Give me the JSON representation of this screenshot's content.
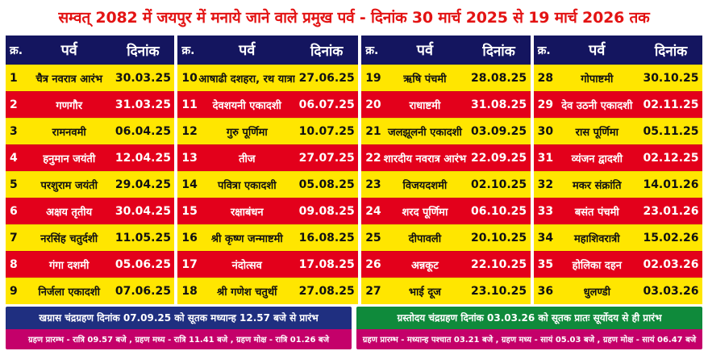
{
  "title": "सम्वत् 2082 में जयपुर में मनाये जाने वाले प्रमुख पर्व - दिनांक 30 मार्च 2025 से 19 मार्च 2026 तक",
  "headers": {
    "num": "क्र.",
    "festival": "पर्व",
    "date": "दिनांक"
  },
  "colors": {
    "header_bg": "#14155f",
    "yellow": "#ffe600",
    "red": "#e3001b",
    "title": "#e31313"
  },
  "columns": [
    [
      {
        "num": "1",
        "name": "चैत्र नवरात्र आरंभ",
        "date": "30.03.25"
      },
      {
        "num": "2",
        "name": "गणगौर",
        "date": "31.03.25"
      },
      {
        "num": "3",
        "name": "रामनवमी",
        "date": "06.04.25"
      },
      {
        "num": "4",
        "name": "हनुमान जयंती",
        "date": "12.04.25"
      },
      {
        "num": "5",
        "name": "परशुराम जयंती",
        "date": "29.04.25"
      },
      {
        "num": "6",
        "name": "अक्षय तृतीय",
        "date": "30.04.25"
      },
      {
        "num": "7",
        "name": "नरसिंह चतुर्दशी",
        "date": "11.05.25"
      },
      {
        "num": "8",
        "name": "गंगा दशमी",
        "date": "05.06.25"
      },
      {
        "num": "9",
        "name": "निर्जला एकादशी",
        "date": "07.06.25"
      }
    ],
    [
      {
        "num": "10",
        "name": "आषाढी दशहरा, रथ यात्रा",
        "date": "27.06.25"
      },
      {
        "num": "11",
        "name": "देवशयनी एकादशी",
        "date": "06.07.25"
      },
      {
        "num": "12",
        "name": "गुरु पूर्णिमा",
        "date": "10.07.25"
      },
      {
        "num": "13",
        "name": "तीज",
        "date": "27.07.25"
      },
      {
        "num": "14",
        "name": "पवित्रा एकादशी",
        "date": "05.08.25"
      },
      {
        "num": "15",
        "name": "रक्षाबंधन",
        "date": "09.08.25"
      },
      {
        "num": "16",
        "name": "श्री कृष्ण जन्माष्टमी",
        "date": "16.08.25"
      },
      {
        "num": "17",
        "name": "नंदोत्सव",
        "date": "17.08.25"
      },
      {
        "num": "18",
        "name": "श्री गणेश चतुर्थी",
        "date": "27.08.25"
      }
    ],
    [
      {
        "num": "19",
        "name": "ऋषि पंचमी",
        "date": "28.08.25"
      },
      {
        "num": "20",
        "name": "राधाष्टमी",
        "date": "31.08.25"
      },
      {
        "num": "21",
        "name": "जलझूलनी एकादशी",
        "date": "03.09.25"
      },
      {
        "num": "22",
        "name": "शारदीय नवरात्र आरंभ",
        "date": "22.09.25"
      },
      {
        "num": "23",
        "name": "विजयदशमी",
        "date": "02.10.25"
      },
      {
        "num": "24",
        "name": "शरद पूर्णिमा",
        "date": "06.10.25"
      },
      {
        "num": "25",
        "name": "दीपावली",
        "date": "20.10.25"
      },
      {
        "num": "26",
        "name": "अन्नकूट",
        "date": "22.10.25"
      },
      {
        "num": "27",
        "name": "भाई दूज",
        "date": "23.10.25"
      }
    ],
    [
      {
        "num": "28",
        "name": "गोपाष्टमी",
        "date": "30.10.25"
      },
      {
        "num": "29",
        "name": "देव उठनी एकादशी",
        "date": "02.11.25"
      },
      {
        "num": "30",
        "name": "रास पूर्णिमा",
        "date": "05.11.25"
      },
      {
        "num": "31",
        "name": "व्यंजन द्वादशी",
        "date": "02.12.25"
      },
      {
        "num": "32",
        "name": "मकर संक्रांति",
        "date": "14.01.26"
      },
      {
        "num": "33",
        "name": "बसंत पंचमी",
        "date": "23.01.26"
      },
      {
        "num": "34",
        "name": "महाशिवरात्री",
        "date": "15.02.26"
      },
      {
        "num": "35",
        "name": "होलिका दहन",
        "date": "02.03.26"
      },
      {
        "num": "36",
        "name": "धुलण्डी",
        "date": "03.03.26"
      }
    ]
  ],
  "footer": {
    "left": {
      "line1": "खग्रास चंद्रग्रहण दिनांक 07.09.25 को सूतक मध्यान्ह 12.57 बजे से प्रारंभ",
      "line2": "ग्रहण प्रारम्भ - रात्रि 09.57 बजे , ग्रहण मध्य - रात्रि 11.41 बजे , ग्रहण मोक्ष - रात्रि 01.26 बजे"
    },
    "right": {
      "line1": "ग्रस्तोदय चंद्रग्रहण दिनांक 03.03.26 को सूतक प्रातः सूर्योदय से ही प्रारंभ",
      "line2": "ग्रहण प्रारम्भ - मध्यान्ह पश्चात 03.21 बजे , ग्रहण मध्य - सायं 05.03 बजे , ग्रहण मोक्ष - सायं 06.47 बजे"
    }
  }
}
